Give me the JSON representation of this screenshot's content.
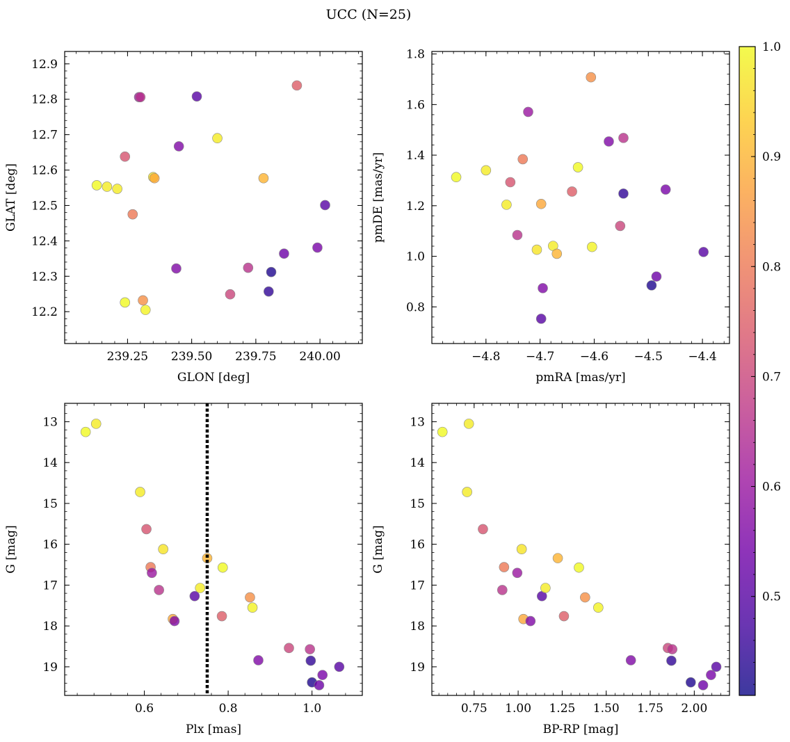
{
  "title": "UCC (N=25)",
  "colors": {
    "plasma": [
      "#0d0887",
      "#46039f",
      "#7201a8",
      "#9c179e",
      "#bd3786",
      "#d8576b",
      "#ed7953",
      "#fb9f3a",
      "#fdca26",
      "#f0f921"
    ],
    "marker_edge": "#888888",
    "marker_alpha": 0.8,
    "vline": "#000000"
  },
  "chart_data": {
    "title": "UCC (N=25)",
    "colorbar": {
      "range": [
        0.41,
        1.0
      ],
      "ticks": [
        0.5,
        0.6,
        0.7,
        0.8,
        0.9,
        1.0
      ],
      "tick_labels": [
        "0.5",
        "0.6",
        "0.7",
        "0.8",
        "0.9",
        "1.0"
      ],
      "colormap": "plasma",
      "label": ""
    },
    "points": {
      "glon": [
        239.13,
        239.17,
        239.21,
        239.24,
        239.27,
        239.295,
        239.3,
        239.35,
        239.355,
        239.45,
        239.52,
        239.6,
        239.78,
        239.91,
        239.24,
        239.31,
        239.32,
        239.44,
        239.65,
        239.72,
        239.8,
        239.81,
        239.86,
        239.99,
        240.02
      ],
      "glat": [
        12.557,
        12.553,
        12.547,
        12.638,
        12.475,
        12.806,
        12.806,
        12.58,
        12.577,
        12.667,
        12.808,
        12.69,
        12.577,
        12.839,
        12.226,
        12.232,
        12.205,
        12.322,
        12.249,
        12.324,
        12.257,
        12.312,
        12.364,
        12.381,
        12.501
      ],
      "pmra": [
        -4.855,
        -4.8,
        -4.762,
        -4.755,
        -4.732,
        -4.722,
        -4.742,
        -4.706,
        -4.698,
        -4.695,
        -4.698,
        -4.676,
        -4.669,
        -4.641,
        -4.63,
        -4.606,
        -4.604,
        -4.573,
        -4.552,
        -4.546,
        -4.546,
        -4.494,
        -4.485,
        -4.468,
        -4.398
      ],
      "pmde": [
        1.313,
        1.34,
        1.204,
        1.293,
        1.384,
        1.571,
        1.084,
        1.026,
        1.207,
        0.874,
        0.753,
        1.041,
        1.01,
        1.256,
        1.352,
        1.708,
        1.037,
        1.454,
        1.12,
        1.468,
        1.248,
        0.885,
        0.92,
        1.264,
        1.017
      ],
      "plx": [
        0.46,
        0.485,
        0.59,
        0.605,
        0.615,
        0.618,
        0.635,
        0.645,
        0.668,
        0.672,
        0.72,
        0.733,
        0.75,
        0.785,
        0.787,
        0.852,
        0.858,
        0.872,
        0.945,
        0.995,
        0.997,
        1.0,
        1.017,
        1.025,
        1.065
      ],
      "bprp": [
        0.57,
        0.72,
        0.71,
        0.8,
        0.92,
        0.995,
        0.91,
        1.02,
        1.03,
        1.07,
        1.135,
        1.155,
        1.225,
        1.26,
        1.345,
        1.38,
        1.455,
        1.64,
        1.85,
        1.875,
        1.87,
        1.98,
        2.05,
        2.095,
        2.125
      ],
      "g": [
        13.25,
        13.05,
        14.72,
        15.63,
        16.56,
        16.7,
        17.12,
        16.12,
        17.83,
        17.88,
        17.27,
        17.07,
        16.34,
        17.76,
        16.57,
        17.3,
        17.55,
        18.84,
        18.54,
        18.57,
        18.85,
        19.38,
        19.45,
        19.2,
        19.0
      ],
      "prob": [
        1.0,
        0.98,
        0.98,
        0.73,
        0.8,
        0.6,
        0.66,
        0.97,
        0.88,
        0.56,
        0.5,
        0.98,
        0.9,
        0.75,
        1.0,
        0.84,
        0.99,
        0.56,
        0.7,
        0.66,
        0.45,
        0.43,
        0.53,
        0.55,
        0.5
      ]
    },
    "plots": [
      {
        "type": "scatter",
        "x": "glon",
        "y": "glat",
        "xlabel": "GLON [deg]",
        "ylabel": "GLAT [deg]",
        "xlim": [
          239.005,
          240.165
        ],
        "ylim": [
          12.11,
          12.935
        ],
        "xticks": [
          239.25,
          239.5,
          239.75,
          240.0
        ],
        "xtick_labels": [
          "239.25",
          "239.50",
          "239.75",
          "240.00"
        ],
        "yticks": [
          12.2,
          12.3,
          12.4,
          12.5,
          12.6,
          12.7,
          12.8,
          12.9
        ],
        "ytick_labels": [
          "12.2",
          "12.3",
          "12.4",
          "12.5",
          "12.6",
          "12.7",
          "12.8",
          "12.9"
        ],
        "invert_y": false
      },
      {
        "type": "scatter",
        "x": "pmra",
        "y": "pmde",
        "xlabel": "pmRA [mas/yr]",
        "ylabel": "pmDE [mas/yr]",
        "xlim": [
          -4.9,
          -4.35
        ],
        "ylim": [
          0.655,
          1.81
        ],
        "xticks": [
          -4.8,
          -4.7,
          -4.6,
          -4.5,
          -4.4
        ],
        "xtick_labels": [
          "−4.8",
          "−4.7",
          "−4.6",
          "−4.5",
          "−4.4"
        ],
        "yticks": [
          0.8,
          1.0,
          1.2,
          1.4,
          1.6,
          1.8
        ],
        "ytick_labels": [
          "0.8",
          "1.0",
          "1.2",
          "1.4",
          "1.6",
          "1.8"
        ],
        "invert_y": false
      },
      {
        "type": "scatter",
        "x": "plx",
        "y": "g",
        "xlabel": "Plx [mas]",
        "ylabel": "G [mag]",
        "xlim": [
          0.41,
          1.12
        ],
        "ylim": [
          12.55,
          19.7
        ],
        "xticks": [
          0.6,
          0.8,
          1.0
        ],
        "xtick_labels": [
          "0.6",
          "0.8",
          "1.0"
        ],
        "yticks": [
          13,
          14,
          15,
          16,
          17,
          18,
          19
        ],
        "ytick_labels": [
          "13",
          "14",
          "15",
          "16",
          "17",
          "18",
          "19"
        ],
        "invert_y": true,
        "vline": 0.75
      },
      {
        "type": "scatter",
        "x": "bprp",
        "y": "g",
        "xlabel": "BP-RP [mag]",
        "ylabel": "G [mag]",
        "xlim": [
          0.51,
          2.2
        ],
        "ylim": [
          12.55,
          19.7
        ],
        "xticks": [
          0.75,
          1.0,
          1.25,
          1.5,
          1.75,
          2.0
        ],
        "xtick_labels": [
          "0.75",
          "1.00",
          "1.25",
          "1.50",
          "1.75",
          "2.00"
        ],
        "yticks": [
          13,
          14,
          15,
          16,
          17,
          18,
          19
        ],
        "ytick_labels": [
          "13",
          "14",
          "15",
          "16",
          "17",
          "18",
          "19"
        ],
        "invert_y": true
      }
    ]
  }
}
